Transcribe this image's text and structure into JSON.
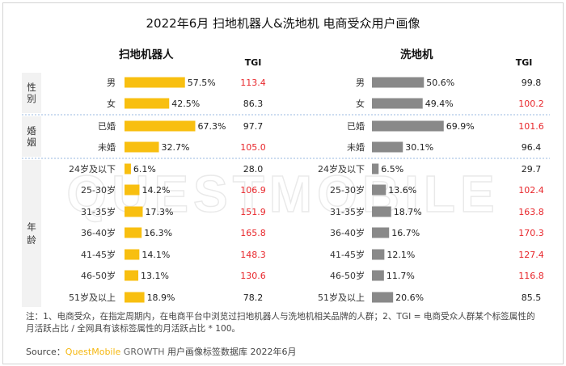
{
  "title": "2022年6月 扫地机器人&洗地机 电商受众用户画像",
  "watermark": "QUESTMOBILE",
  "tgi_header": "TGI",
  "colors": {
    "left_bar": "#f8bf10",
    "right_bar": "#898989",
    "tgi_high": "#e8262b",
    "tgi_normal": "#222222",
    "section_bg": "#f2f2f2",
    "divider": "#9ab8e0"
  },
  "groups": [
    {
      "label": "性别",
      "rows": [
        0,
        1
      ]
    },
    {
      "label": "婚姻",
      "rows": [
        2,
        3
      ]
    },
    {
      "label": "年龄",
      "rows": [
        4,
        10
      ]
    }
  ],
  "chart_data": [
    {
      "type": "bar",
      "title": "扫地机器人",
      "categories": [
        "男",
        "女",
        "已婚",
        "未婚",
        "24岁及以下",
        "25-30岁",
        "31-35岁",
        "36-40岁",
        "41-45岁",
        "46-50岁",
        "51岁及以上"
      ],
      "value_labels": [
        "57.5%",
        "42.5%",
        "67.3%",
        "32.7%",
        "6.1%",
        "14.2%",
        "17.3%",
        "16.3%",
        "14.1%",
        "13.1%",
        "18.9%"
      ],
      "values": [
        57.5,
        42.5,
        67.3,
        32.7,
        6.1,
        14.2,
        17.3,
        16.3,
        14.1,
        13.1,
        18.9
      ],
      "tgi_labels": [
        "113.4",
        "86.3",
        "97.7",
        "105.0",
        "28.0",
        "106.9",
        "151.9",
        "165.8",
        "148.3",
        "130.6",
        "78.2"
      ],
      "tgi": [
        113.4,
        86.3,
        97.7,
        105.0,
        28.0,
        106.9,
        151.9,
        165.8,
        148.3,
        130.6,
        78.2
      ],
      "orientation": "horizontal"
    },
    {
      "type": "bar",
      "title": "洗地机",
      "categories": [
        "男",
        "女",
        "已婚",
        "未婚",
        "24岁及以下",
        "25-30岁",
        "31-35岁",
        "36-40岁",
        "41-45岁",
        "46-50岁",
        "51岁及以上"
      ],
      "value_labels": [
        "50.6%",
        "49.4%",
        "69.9%",
        "30.1%",
        "6.5%",
        "13.6%",
        "18.7%",
        "16.7%",
        "12.1%",
        "11.7%",
        "20.6%"
      ],
      "values": [
        50.6,
        49.4,
        69.9,
        30.1,
        6.5,
        13.6,
        18.7,
        16.7,
        12.1,
        11.7,
        20.6
      ],
      "tgi_labels": [
        "99.8",
        "100.2",
        "101.6",
        "96.4",
        "29.7",
        "102.4",
        "163.8",
        "170.3",
        "127.4",
        "116.8",
        "85.5"
      ],
      "tgi": [
        99.8,
        100.2,
        101.6,
        96.4,
        29.7,
        102.4,
        163.8,
        170.3,
        127.4,
        116.8,
        85.5
      ],
      "orientation": "horizontal"
    }
  ],
  "note": "注：1、电商受众，在指定周期内，在电商平台中浏览过扫地机器人与洗地机相关品牌的人群；2、TGI = 电商受众人群某个标签属性的月活跃占比 / 全网具有该标签属性的月活跃占比 * 100。",
  "source": {
    "prefix": "Source：",
    "brand": "QuestMobile",
    "growth": " GROWTH",
    "suffix": " 用户画像标签数据库 2022年6月"
  }
}
